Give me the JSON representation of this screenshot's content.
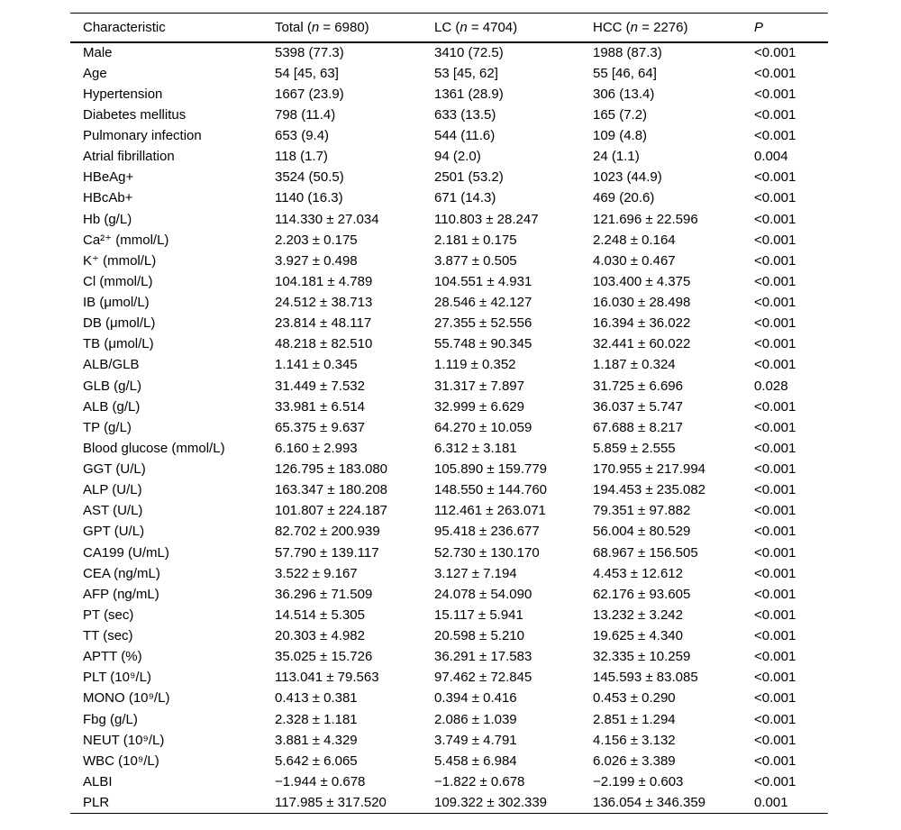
{
  "table": {
    "columns": [
      {
        "label": "Characteristic"
      },
      {
        "pre": "Total (",
        "n": "n",
        "post": " = 6980)"
      },
      {
        "pre": "LC (",
        "n": "n",
        "post": " = 4704)"
      },
      {
        "pre": "HCC (",
        "n": "n",
        "post": " = 2276)"
      },
      {
        "label": "P"
      }
    ],
    "rows": [
      {
        "characteristic": "Male",
        "total": "5398 (77.3)",
        "lc": "3410 (72.5)",
        "hcc": "1988 (87.3)",
        "p": "<0.001"
      },
      {
        "characteristic": "Age",
        "total": "54 [45, 63]",
        "lc": "53 [45, 62]",
        "hcc": "55 [46, 64]",
        "p": "<0.001"
      },
      {
        "characteristic": "Hypertension",
        "total": "1667 (23.9)",
        "lc": "1361 (28.9)",
        "hcc": "306 (13.4)",
        "p": "<0.001"
      },
      {
        "characteristic": "Diabetes mellitus",
        "total": "798 (11.4)",
        "lc": "633 (13.5)",
        "hcc": "165 (7.2)",
        "p": "<0.001"
      },
      {
        "characteristic": "Pulmonary infection",
        "total": "653 (9.4)",
        "lc": "544 (11.6)",
        "hcc": "109 (4.8)",
        "p": "<0.001"
      },
      {
        "characteristic": "Atrial fibrillation",
        "total": "118 (1.7)",
        "lc": "94 (2.0)",
        "hcc": "24 (1.1)",
        "p": "0.004"
      },
      {
        "characteristic": "HBeAg+",
        "total": "3524 (50.5)",
        "lc": "2501 (53.2)",
        "hcc": "1023 (44.9)",
        "p": "<0.001"
      },
      {
        "characteristic": "HBcAb+",
        "total": "1140 (16.3)",
        "lc": "671 (14.3)",
        "hcc": "469 (20.6)",
        "p": "<0.001"
      },
      {
        "characteristic": "Hb (g/L)",
        "total": "114.330 ± 27.034",
        "lc": "110.803 ± 28.247",
        "hcc": "121.696 ± 22.596",
        "p": "<0.001"
      },
      {
        "characteristic": "Ca²⁺ (mmol/L)",
        "total": "2.203 ± 0.175",
        "lc": "2.181 ± 0.175",
        "hcc": "2.248 ± 0.164",
        "p": "<0.001"
      },
      {
        "characteristic": "K⁺ (mmol/L)",
        "total": "3.927 ± 0.498",
        "lc": "3.877 ± 0.505",
        "hcc": "4.030 ± 0.467",
        "p": "<0.001"
      },
      {
        "characteristic": "Cl (mmol/L)",
        "total": "104.181 ± 4.789",
        "lc": "104.551 ± 4.931",
        "hcc": "103.400 ± 4.375",
        "p": "<0.001"
      },
      {
        "characteristic": "IB (μmol/L)",
        "total": "24.512 ± 38.713",
        "lc": "28.546 ± 42.127",
        "hcc": "16.030 ± 28.498",
        "p": "<0.001"
      },
      {
        "characteristic": "DB (μmol/L)",
        "total": "23.814 ± 48.117",
        "lc": "27.355 ± 52.556",
        "hcc": "16.394 ± 36.022",
        "p": "<0.001"
      },
      {
        "characteristic": "TB (μmol/L)",
        "total": "48.218 ± 82.510",
        "lc": "55.748 ± 90.345",
        "hcc": "32.441 ± 60.022",
        "p": "<0.001"
      },
      {
        "characteristic": "ALB/GLB",
        "total": "1.141 ± 0.345",
        "lc": "1.119 ± 0.352",
        "hcc": "1.187 ± 0.324",
        "p": "<0.001"
      },
      {
        "characteristic": "GLB (g/L)",
        "total": "31.449 ± 7.532",
        "lc": "31.317 ± 7.897",
        "hcc": "31.725 ± 6.696",
        "p": "0.028"
      },
      {
        "characteristic": "ALB (g/L)",
        "total": "33.981 ± 6.514",
        "lc": "32.999 ± 6.629",
        "hcc": "36.037 ± 5.747",
        "p": "<0.001"
      },
      {
        "characteristic": "TP (g/L)",
        "total": "65.375 ± 9.637",
        "lc": "64.270 ± 10.059",
        "hcc": "67.688 ± 8.217",
        "p": "<0.001"
      },
      {
        "characteristic": "Blood glucose (mmol/L)",
        "total": "6.160 ± 2.993",
        "lc": "6.312 ± 3.181",
        "hcc": "5.859 ± 2.555",
        "p": "<0.001"
      },
      {
        "characteristic": "GGT (U/L)",
        "total": "126.795 ± 183.080",
        "lc": "105.890 ± 159.779",
        "hcc": "170.955 ± 217.994",
        "p": "<0.001"
      },
      {
        "characteristic": "ALP (U/L)",
        "total": "163.347 ± 180.208",
        "lc": "148.550 ± 144.760",
        "hcc": "194.453 ± 235.082",
        "p": "<0.001"
      },
      {
        "characteristic": "AST (U/L)",
        "total": "101.807 ± 224.187",
        "lc": "112.461 ± 263.071",
        "hcc": "79.351 ± 97.882",
        "p": "<0.001"
      },
      {
        "characteristic": "GPT (U/L)",
        "total": "82.702 ± 200.939",
        "lc": "95.418 ± 236.677",
        "hcc": "56.004 ± 80.529",
        "p": "<0.001"
      },
      {
        "characteristic": "CA199 (U/mL)",
        "total": "57.790 ± 139.117",
        "lc": "52.730 ± 130.170",
        "hcc": "68.967 ± 156.505",
        "p": "<0.001"
      },
      {
        "characteristic": "CEA (ng/mL)",
        "total": "3.522 ± 9.167",
        "lc": "3.127 ± 7.194",
        "hcc": "4.453 ± 12.612",
        "p": "<0.001"
      },
      {
        "characteristic": "AFP (ng/mL)",
        "total": "36.296 ± 71.509",
        "lc": "24.078 ± 54.090",
        "hcc": "62.176 ± 93.605",
        "p": "<0.001"
      },
      {
        "characteristic": "PT (sec)",
        "total": "14.514 ± 5.305",
        "lc": "15.117 ± 5.941",
        "hcc": "13.232 ± 3.242",
        "p": "<0.001"
      },
      {
        "characteristic": "TT (sec)",
        "total": "20.303 ± 4.982",
        "lc": "20.598 ± 5.210",
        "hcc": "19.625 ± 4.340",
        "p": "<0.001"
      },
      {
        "characteristic": "APTT (%)",
        "total": "35.025 ± 15.726",
        "lc": "36.291 ± 17.583",
        "hcc": "32.335 ± 10.259",
        "p": "<0.001"
      },
      {
        "characteristic": "PLT (10⁹/L)",
        "total": "113.041 ± 79.563",
        "lc": "97.462 ± 72.845",
        "hcc": "145.593 ± 83.085",
        "p": "<0.001"
      },
      {
        "characteristic": "MONO (10⁹/L)",
        "total": "0.413 ± 0.381",
        "lc": "0.394 ± 0.416",
        "hcc": "0.453 ± 0.290",
        "p": "<0.001"
      },
      {
        "characteristic": "Fbg (g/L)",
        "total": "2.328 ± 1.181",
        "lc": "2.086 ± 1.039",
        "hcc": "2.851 ± 1.294",
        "p": "<0.001"
      },
      {
        "characteristic": "NEUT (10⁹/L)",
        "total": "3.881 ± 4.329",
        "lc": "3.749 ± 4.791",
        "hcc": "4.156 ± 3.132",
        "p": "<0.001"
      },
      {
        "characteristic": "WBC (10⁹/L)",
        "total": "5.642 ± 6.065",
        "lc": "5.458 ± 6.984",
        "hcc": "6.026 ± 3.389",
        "p": "<0.001"
      },
      {
        "characteristic": "ALBI",
        "total": "−1.944 ± 0.678",
        "lc": "−1.822 ± 0.678",
        "hcc": "−2.199 ± 0.603",
        "p": "<0.001"
      },
      {
        "characteristic": "PLR",
        "total": "117.985 ± 317.520",
        "lc": "109.322 ± 302.339",
        "hcc": "136.054 ± 346.359",
        "p": "0.001"
      }
    ]
  }
}
